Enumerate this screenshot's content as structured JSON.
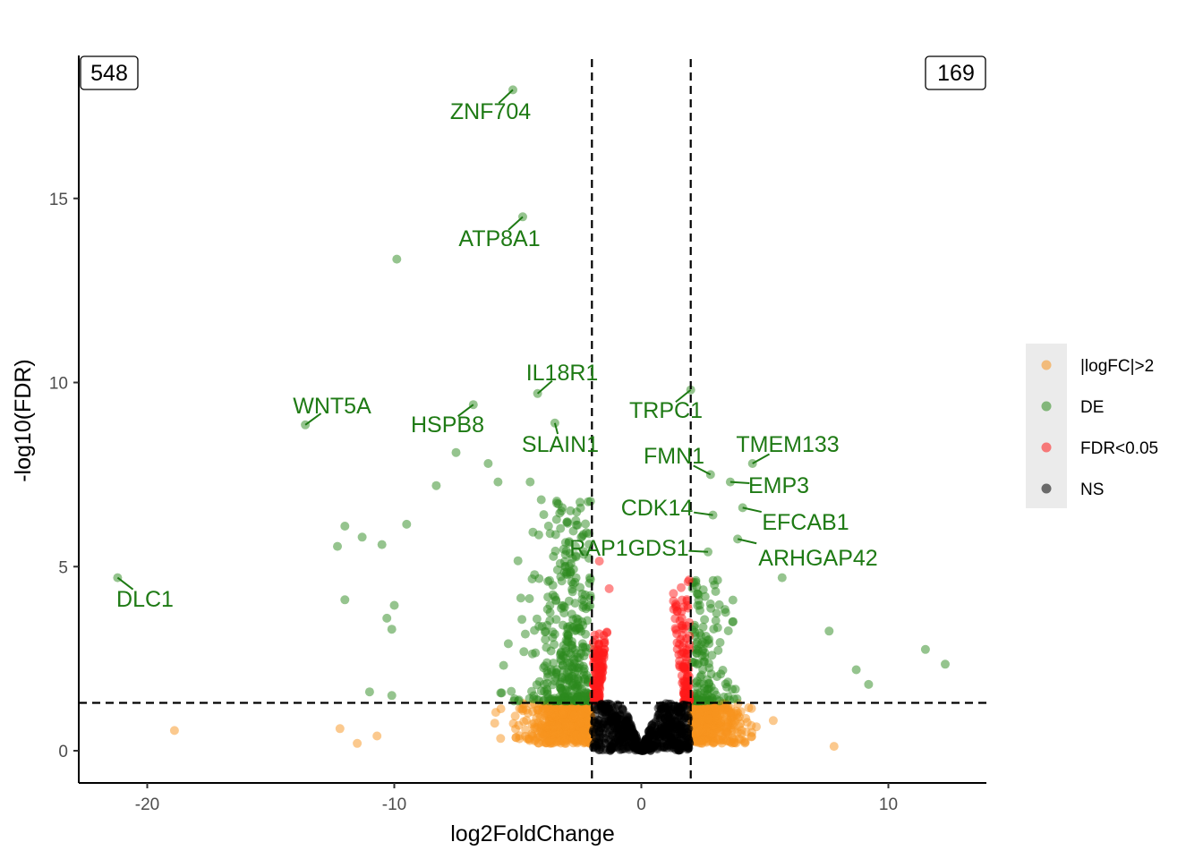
{
  "chart_data": {
    "type": "scatter",
    "xlabel": "log2FoldChange",
    "ylabel": "-log10(FDR)",
    "xlim": [
      -22.8,
      14.0
    ],
    "ylim": [
      -0.85,
      18.9
    ],
    "x_ticks": [
      -20,
      -10,
      0,
      10
    ],
    "y_ticks": [
      0,
      5,
      10,
      15
    ],
    "fc_threshold": 2,
    "fdr_line": 1.3,
    "grid": false,
    "legend_position": "right",
    "count_down": "548",
    "count_up": "169",
    "colors": {
      "|logFC|>2": "#f7931e",
      "DE": "#2b8a1e",
      "FDR<0.05": "#ff1a1a",
      "NS": "#000000"
    },
    "legend": [
      "|logFC|>2",
      "DE",
      "FDR<0.05",
      "NS"
    ],
    "labeled_points": [
      {
        "gene": "ZNF704",
        "x": -5.2,
        "y": 17.95
      },
      {
        "gene": "ATP8A1",
        "x": -4.8,
        "y": 14.5
      },
      {
        "gene": "IL18R1",
        "x": -4.2,
        "y": 9.7
      },
      {
        "gene": "WNT5A",
        "x": -13.6,
        "y": 8.85
      },
      {
        "gene": "HSPB8",
        "x": -6.8,
        "y": 9.4
      },
      {
        "gene": "SLAIN1",
        "x": -3.5,
        "y": 8.9
      },
      {
        "gene": "TRPC1",
        "x": 2.0,
        "y": 9.8
      },
      {
        "gene": "FMN1",
        "x": 2.8,
        "y": 7.5
      },
      {
        "gene": "TMEM133",
        "x": 4.5,
        "y": 7.8
      },
      {
        "gene": "EMP3",
        "x": 3.6,
        "y": 7.3
      },
      {
        "gene": "CDK14",
        "x": 2.9,
        "y": 6.4
      },
      {
        "gene": "EFCAB1",
        "x": 4.1,
        "y": 6.6
      },
      {
        "gene": "RAP1GDS1",
        "x": 2.7,
        "y": 5.4
      },
      {
        "gene": "ARHGAP42",
        "x": 3.9,
        "y": 5.75
      },
      {
        "gene": "DLC1",
        "x": -21.2,
        "y": 4.7
      }
    ],
    "extra_points": [
      {
        "x": -9.9,
        "y": 13.35,
        "cat": "DE"
      },
      {
        "x": -18.9,
        "y": 0.55,
        "cat": "|logFC|>2"
      },
      {
        "x": 11.5,
        "y": 2.75,
        "cat": "DE"
      },
      {
        "x": 12.3,
        "y": 2.35,
        "cat": "DE"
      },
      {
        "x": 7.8,
        "y": 0.12,
        "cat": "|logFC|>2"
      },
      {
        "x": 5.7,
        "y": 4.7,
        "cat": "DE"
      },
      {
        "x": 7.6,
        "y": 3.25,
        "cat": "DE"
      },
      {
        "x": 8.7,
        "y": 2.2,
        "cat": "DE"
      },
      {
        "x": 9.2,
        "y": 1.8,
        "cat": "DE"
      },
      {
        "x": -12.3,
        "y": 5.55,
        "cat": "DE"
      },
      {
        "x": -12.0,
        "y": 6.1,
        "cat": "DE"
      },
      {
        "x": -11.3,
        "y": 5.8,
        "cat": "DE"
      },
      {
        "x": -10.5,
        "y": 5.6,
        "cat": "DE"
      },
      {
        "x": -9.5,
        "y": 6.15,
        "cat": "DE"
      },
      {
        "x": -12.0,
        "y": 4.1,
        "cat": "DE"
      },
      {
        "x": -10.3,
        "y": 3.6,
        "cat": "DE"
      },
      {
        "x": -10.1,
        "y": 3.3,
        "cat": "DE"
      },
      {
        "x": -10.0,
        "y": 3.95,
        "cat": "DE"
      },
      {
        "x": -11.0,
        "y": 1.6,
        "cat": "DE"
      },
      {
        "x": -10.1,
        "y": 1.5,
        "cat": "DE"
      },
      {
        "x": -12.2,
        "y": 0.6,
        "cat": "|logFC|>2"
      },
      {
        "x": -11.5,
        "y": 0.2,
        "cat": "|logFC|>2"
      },
      {
        "x": -10.7,
        "y": 0.4,
        "cat": "|logFC|>2"
      },
      {
        "x": -8.3,
        "y": 7.2,
        "cat": "DE"
      },
      {
        "x": -7.5,
        "y": 8.1,
        "cat": "DE"
      },
      {
        "x": -6.2,
        "y": 7.8,
        "cat": "DE"
      },
      {
        "x": -4.5,
        "y": 7.3,
        "cat": "DE"
      },
      {
        "x": -5.8,
        "y": 7.3,
        "cat": "DE"
      },
      {
        "x": -3.2,
        "y": 6.6,
        "cat": "DE"
      }
    ]
  }
}
